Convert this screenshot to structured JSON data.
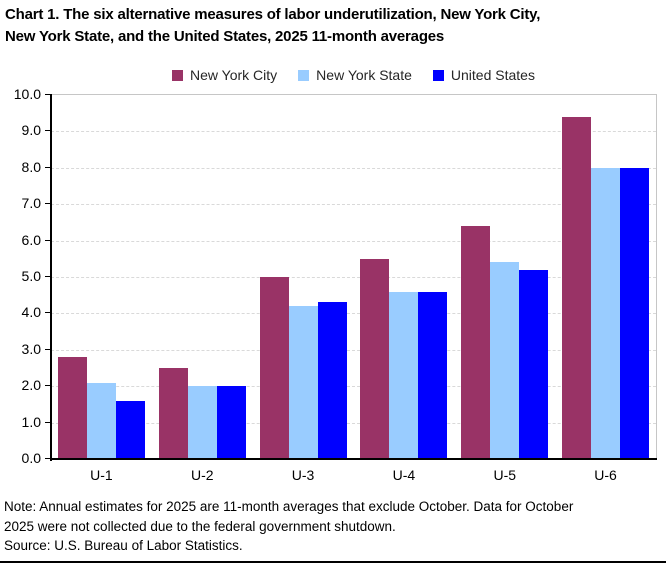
{
  "title": "Chart 1. The six alternative measures of labor underutilization, New York City,\nNew York State, and the United States, 2025 11-month averages",
  "note": "Note: Annual estimates for 2025 are 11-month averages that exclude October. Data for October\n2025 were not collected due to the federal government shutdown.",
  "source": "Source: U.S. Bureau of Labor Statistics.",
  "colors": {
    "axis": "#000000",
    "gridline": "#D9D9D9",
    "plot_border": "#C6C6C6",
    "background": "#FFFFFF",
    "new_york_city": "#993366",
    "new_york_state": "#99CCFF",
    "united_states": "#0000FF"
  },
  "chart_data": {
    "type": "bar",
    "title": "Chart 1. The six alternative measures of labor underutilization, New York City, New York State, and the United States, 2025 11-month averages",
    "categories": [
      "U-1",
      "U-2",
      "U-3",
      "U-4",
      "U-5",
      "U-6"
    ],
    "series": [
      {
        "name": "New York City",
        "color": "#993366",
        "values": [
          2.8,
          2.5,
          5.0,
          5.5,
          6.4,
          9.4
        ]
      },
      {
        "name": "New York State",
        "color": "#99CCFF",
        "values": [
          2.1,
          2.0,
          4.2,
          4.6,
          5.4,
          8.0
        ]
      },
      {
        "name": "United States",
        "color": "#0000FF",
        "values": [
          1.6,
          2.0,
          4.3,
          4.6,
          5.2,
          8.0
        ]
      }
    ],
    "xlabel": "",
    "ylabel": "",
    "ylim": [
      0,
      10
    ],
    "ytick_step": 1.0,
    "ytick_labels": [
      "0.0",
      "1.0",
      "2.0",
      "3.0",
      "4.0",
      "5.0",
      "6.0",
      "7.0",
      "8.0",
      "9.0",
      "10.0"
    ],
    "grid": "horizontal-dashed",
    "legend_position": "top-center"
  }
}
